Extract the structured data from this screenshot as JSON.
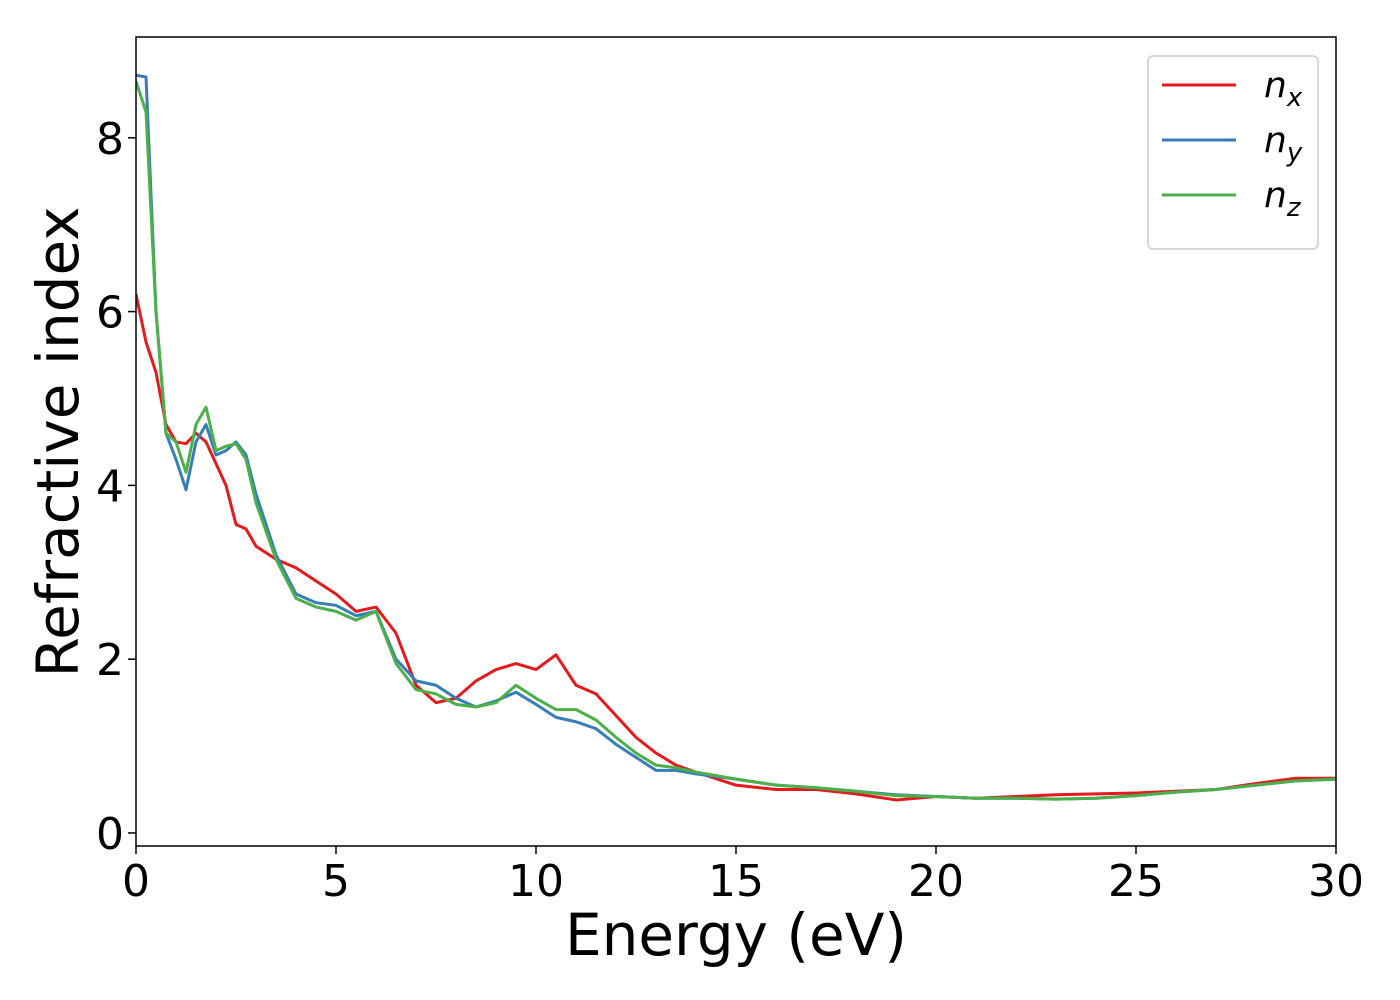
{
  "chart_data": {
    "type": "line",
    "xlabel": "Energy (eV)",
    "ylabel": "Refractive index",
    "x": [
      0,
      0.25,
      0.5,
      0.75,
      1,
      1.25,
      1.5,
      1.75,
      2,
      2.25,
      2.5,
      2.75,
      3,
      3.5,
      4,
      4.5,
      5,
      5.5,
      6,
      6.5,
      7,
      7.5,
      8,
      8.5,
      9,
      9.5,
      10,
      10.5,
      11,
      11.5,
      12,
      12.5,
      13,
      13.5,
      14,
      15,
      16,
      17,
      18,
      19,
      20,
      21,
      22,
      23,
      24,
      25,
      26,
      27,
      28,
      29,
      30
    ],
    "series": [
      {
        "name": "n_x",
        "color": "#e41a1c",
        "values": [
          6.2,
          5.65,
          5.3,
          4.7,
          4.5,
          4.48,
          4.6,
          4.5,
          4.25,
          4.0,
          3.55,
          3.5,
          3.3,
          3.15,
          3.05,
          2.9,
          2.75,
          2.55,
          2.6,
          2.3,
          1.7,
          1.5,
          1.55,
          1.75,
          1.88,
          1.95,
          1.88,
          2.05,
          1.7,
          1.6,
          1.35,
          1.1,
          0.92,
          0.78,
          0.7,
          0.55,
          0.5,
          0.5,
          0.45,
          0.38,
          0.42,
          0.4,
          0.42,
          0.44,
          0.45,
          0.46,
          0.48,
          0.5,
          0.57,
          0.63,
          0.63
        ]
      },
      {
        "name": "n_y",
        "color": "#377eb8",
        "values": [
          8.72,
          8.7,
          6.0,
          4.6,
          4.3,
          3.95,
          4.5,
          4.7,
          4.35,
          4.4,
          4.5,
          4.35,
          3.9,
          3.2,
          2.75,
          2.65,
          2.62,
          2.5,
          2.55,
          2.0,
          1.75,
          1.7,
          1.55,
          1.45,
          1.52,
          1.62,
          1.48,
          1.33,
          1.28,
          1.2,
          1.02,
          0.87,
          0.72,
          0.72,
          0.68,
          0.62,
          0.55,
          0.52,
          0.48,
          0.44,
          0.42,
          0.4,
          0.4,
          0.39,
          0.4,
          0.43,
          0.47,
          0.5,
          0.55,
          0.6,
          0.62
        ]
      },
      {
        "name": "n_z",
        "color": "#4daf4a",
        "values": [
          8.65,
          8.3,
          6.0,
          4.6,
          4.5,
          4.15,
          4.7,
          4.9,
          4.4,
          4.45,
          4.48,
          4.3,
          3.8,
          3.15,
          2.7,
          2.6,
          2.55,
          2.45,
          2.55,
          1.95,
          1.65,
          1.6,
          1.48,
          1.45,
          1.5,
          1.7,
          1.55,
          1.42,
          1.42,
          1.3,
          1.1,
          0.92,
          0.78,
          0.75,
          0.7,
          0.62,
          0.55,
          0.52,
          0.48,
          0.43,
          0.42,
          0.4,
          0.4,
          0.39,
          0.4,
          0.43,
          0.47,
          0.5,
          0.55,
          0.6,
          0.62
        ]
      }
    ],
    "xlim": [
      0,
      30
    ],
    "xticks": [
      0,
      5,
      10,
      15,
      20,
      25,
      30
    ],
    "ylim": [
      -0.15,
      9.16
    ],
    "yticks": [
      0,
      2,
      4,
      6,
      8
    ],
    "grid": false,
    "legend": "upper right"
  }
}
